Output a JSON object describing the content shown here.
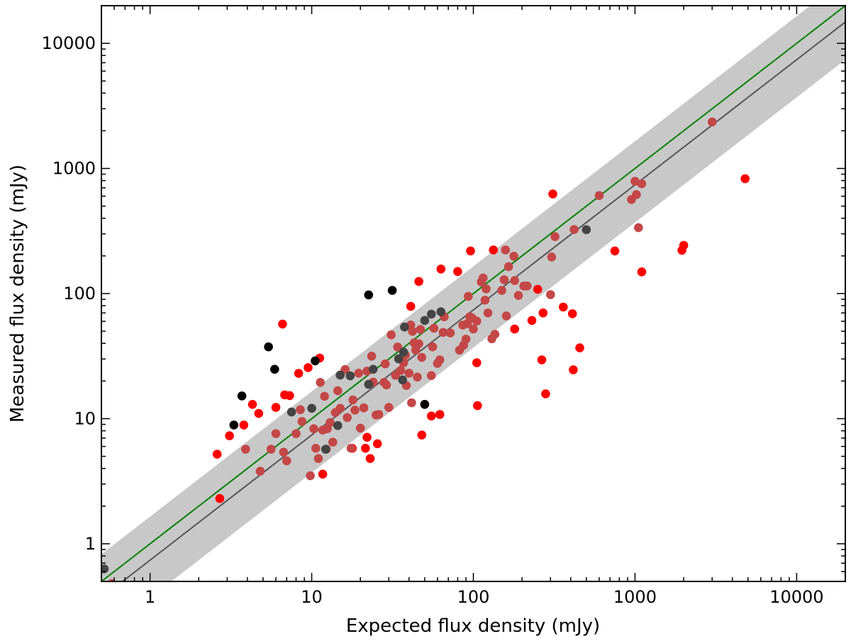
{
  "chart_data": {
    "type": "scatter",
    "title": "",
    "xlabel": "Expected flux density (mJy)",
    "ylabel": "Measured flux density (mJy)",
    "xscale": "log",
    "yscale": "log",
    "xlim": [
      0.5,
      20000
    ],
    "ylim": [
      0.5,
      20000
    ],
    "xticks": [
      1,
      10,
      100,
      1000,
      10000
    ],
    "xtick_labels": [
      "1",
      "10",
      "100",
      "1000",
      "10000"
    ],
    "yticks": [
      1,
      10,
      100,
      1000,
      10000
    ],
    "ytick_labels": [
      "1",
      "10",
      "100",
      "1000",
      "10000"
    ],
    "grid": false,
    "lines": [
      {
        "name": "one-to-one",
        "color": "#008000",
        "slope": 1.0,
        "scale": 1.0
      },
      {
        "name": "best-fit",
        "color": "#555555",
        "slope": 1.0,
        "scale": 0.74
      }
    ],
    "band": {
      "name": "scatter-band",
      "color": "#c8c8c8",
      "lower_factor": 0.37,
      "upper_factor": 1.65
    },
    "series": [
      {
        "name": "red",
        "color": "#ff0000",
        "points": [
          [
            2.6,
            5.2
          ],
          [
            2.7,
            2.3
          ],
          [
            3.1,
            7.3
          ],
          [
            3.8,
            8.9
          ],
          [
            4.3,
            13
          ],
          [
            4.7,
            11
          ],
          [
            6.0,
            12.3
          ],
          [
            6.6,
            57
          ],
          [
            6.8,
            15.5
          ],
          [
            7.3,
            15.3
          ],
          [
            8.3,
            23
          ],
          [
            9.5,
            25.6
          ],
          [
            11.2,
            30.5
          ],
          [
            11.7,
            3.6
          ],
          [
            17.8,
            5.8
          ],
          [
            21.5,
            5.8
          ],
          [
            22.0,
            7.1
          ],
          [
            23.0,
            4.8
          ],
          [
            25.5,
            6.3
          ],
          [
            41,
            79
          ],
          [
            46,
            125
          ],
          [
            48,
            7.4
          ],
          [
            50,
            13
          ],
          [
            55,
            10.5
          ],
          [
            62,
            10.8
          ],
          [
            63,
            157
          ],
          [
            80,
            150
          ],
          [
            96,
            219
          ],
          [
            105,
            28
          ],
          [
            106,
            12.7
          ],
          [
            133,
            223
          ],
          [
            180,
            52
          ],
          [
            230,
            61
          ],
          [
            250,
            108
          ],
          [
            265,
            29.5
          ],
          [
            270,
            70
          ],
          [
            280,
            15.8
          ],
          [
            310,
            625
          ],
          [
            360,
            78
          ],
          [
            410,
            69
          ],
          [
            415,
            24.6
          ],
          [
            455,
            36.8
          ],
          [
            750,
            219
          ],
          [
            1100,
            149
          ],
          [
            1950,
            222
          ],
          [
            2000,
            243
          ],
          [
            4800,
            828
          ]
        ]
      },
      {
        "name": "faded-red",
        "color": "#c44747",
        "points": [
          [
            0.58,
            0.48
          ],
          [
            3.9,
            5.7
          ],
          [
            4.8,
            3.8
          ],
          [
            5.6,
            5.7
          ],
          [
            6.0,
            7.6
          ],
          [
            6.7,
            5.4
          ],
          [
            7.0,
            4.6
          ],
          [
            8.0,
            7.6
          ],
          [
            8.5,
            11.8
          ],
          [
            8.7,
            9.5
          ],
          [
            9.8,
            3.5
          ],
          [
            10.3,
            8.3
          ],
          [
            10.6,
            5.8
          ],
          [
            11.0,
            4.8
          ],
          [
            11.3,
            19.5
          ],
          [
            11.7,
            8.1
          ],
          [
            12.0,
            15.1
          ],
          [
            12.3,
            5.7
          ],
          [
            12.5,
            8.3
          ],
          [
            13.0,
            9.3
          ],
          [
            13.5,
            6.5
          ],
          [
            14.0,
            11.2
          ],
          [
            14.5,
            16.7
          ],
          [
            15.0,
            12.1
          ],
          [
            16.1,
            24.7
          ],
          [
            16.6,
            10.2
          ],
          [
            17.5,
            5.8
          ],
          [
            18.0,
            14.1
          ],
          [
            18.5,
            11.7
          ],
          [
            19.5,
            23.1
          ],
          [
            20.0,
            8.4
          ],
          [
            21.0,
            12.2
          ],
          [
            22.0,
            24.0
          ],
          [
            23.5,
            31.6
          ],
          [
            24.0,
            19.6
          ],
          [
            25.0,
            10.7
          ],
          [
            26.0,
            10.8
          ],
          [
            28.0,
            19.5
          ],
          [
            28.5,
            27.4
          ],
          [
            29.0,
            18.6
          ],
          [
            30.0,
            12.3
          ],
          [
            31.0,
            46.8
          ],
          [
            33.0,
            22.2
          ],
          [
            34.0,
            37.4
          ],
          [
            35.5,
            24.3
          ],
          [
            37.0,
            28.0
          ],
          [
            38.0,
            32.2
          ],
          [
            38.5,
            18.4
          ],
          [
            40.0,
            23.1
          ],
          [
            41.0,
            56.0
          ],
          [
            41.5,
            13.4
          ],
          [
            42.0,
            49.9
          ],
          [
            43.0,
            40.3
          ],
          [
            44.0,
            35.3
          ],
          [
            45.0,
            21.5
          ],
          [
            46.0,
            39.7
          ],
          [
            47.0,
            51.6
          ],
          [
            48.0,
            30.9
          ],
          [
            55.0,
            22.1
          ],
          [
            56.0,
            37.5
          ],
          [
            57.0,
            52.8
          ],
          [
            60.0,
            27.6
          ],
          [
            62.0,
            29.5
          ],
          [
            65.0,
            48.9
          ],
          [
            66.0,
            65.2
          ],
          [
            72.0,
            48.4
          ],
          [
            82.0,
            35.3
          ],
          [
            86.0,
            55.9
          ],
          [
            87.0,
            38.6
          ],
          [
            90.0,
            43.2
          ],
          [
            92.0,
            57.5
          ],
          [
            93.0,
            95.0
          ],
          [
            95.0,
            65.2
          ],
          [
            98.0,
            64.0
          ],
          [
            100.0,
            52.0
          ],
          [
            105.0,
            60.3
          ],
          [
            112.0,
            124
          ],
          [
            115.0,
            133
          ],
          [
            118.0,
            88.6
          ],
          [
            120.0,
            109
          ],
          [
            123.0,
            70.0
          ],
          [
            130.0,
            43.5
          ],
          [
            136.0,
            47.3
          ],
          [
            150.0,
            106
          ],
          [
            155.0,
            129
          ],
          [
            158.0,
            223
          ],
          [
            160.0,
            66.3
          ],
          [
            165.0,
            164
          ],
          [
            178.0,
            199
          ],
          [
            180.0,
            127
          ],
          [
            190.0,
            96.5
          ],
          [
            205.0,
            115
          ],
          [
            215.0,
            115
          ],
          [
            300.0,
            98
          ],
          [
            305.0,
            196
          ],
          [
            320.0,
            285
          ],
          [
            420.0,
            325
          ],
          [
            600.0,
            607
          ],
          [
            950.0,
            564
          ],
          [
            1000.0,
            789
          ],
          [
            1020.0,
            618
          ],
          [
            1050.0,
            336
          ],
          [
            1100.0,
            754
          ],
          [
            3000.0,
            2354
          ]
        ]
      },
      {
        "name": "black",
        "color": "#000000",
        "points": [
          [
            3.3,
            8.9
          ],
          [
            3.7,
            15.2
          ],
          [
            5.4,
            37.5
          ],
          [
            5.9,
            24.8
          ],
          [
            10.5,
            29
          ],
          [
            22.5,
            97.5
          ],
          [
            31.5,
            106
          ],
          [
            50.0,
            13
          ]
        ]
      },
      {
        "name": "gray",
        "color": "#444444",
        "points": [
          [
            0.52,
            0.63
          ],
          [
            7.5,
            11.3
          ],
          [
            10.0,
            12.1
          ],
          [
            12.2,
            5.7
          ],
          [
            14.5,
            8.8
          ],
          [
            15.0,
            22.3
          ],
          [
            17.3,
            22.0
          ],
          [
            22.5,
            18.8
          ],
          [
            24.0,
            24.8
          ],
          [
            34.5,
            30.1
          ],
          [
            36.5,
            20.4
          ],
          [
            37.0,
            34.0
          ],
          [
            37.5,
            54.0
          ],
          [
            50.0,
            61.0
          ],
          [
            55.0,
            68.5
          ],
          [
            63.0,
            71.5
          ],
          [
            500.0,
            324
          ]
        ]
      }
    ]
  }
}
